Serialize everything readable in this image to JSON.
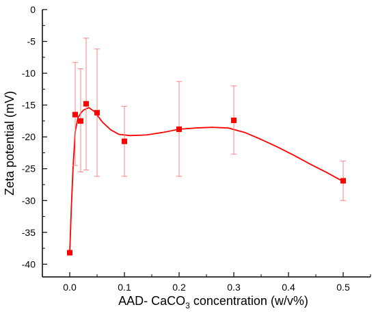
{
  "chart_data": {
    "type": "scatter",
    "xlabel": {
      "main": "AAD- CaCO",
      "sub": "3",
      "rest": " concentration (w/v%)"
    },
    "ylabel": "Zeta potential (mV)",
    "xlim": [
      -0.05,
      0.55
    ],
    "ylim": [
      -42,
      0
    ],
    "xticks": [
      0.0,
      0.1,
      0.2,
      0.3,
      0.4,
      0.5
    ],
    "xtick_labels": [
      "0.0",
      "0.1",
      "0.2",
      "0.3",
      "0.4",
      "0.5"
    ],
    "yticks": [
      0,
      -5,
      -10,
      -15,
      -20,
      -25,
      -30,
      -35,
      -40
    ],
    "ytick_labels": [
      "0",
      "-5",
      "-10",
      "-15",
      "-20",
      "-25",
      "-30",
      "-35",
      "-40"
    ],
    "grid": false,
    "colors": {
      "series": "#ff0000",
      "errorbar": "#ff8080",
      "axis": "#000000"
    },
    "series": [
      {
        "x": [
          0.0,
          0.01,
          0.02,
          0.03,
          0.05,
          0.1,
          0.2,
          0.3,
          0.5
        ],
        "y": [
          -38.2,
          -16.5,
          -17.5,
          -14.8,
          -16.2,
          -20.7,
          -18.8,
          -17.4,
          -26.9
        ],
        "yerr_low": [
          null,
          -24.5,
          -25.5,
          -25.2,
          -26.2,
          -26.2,
          -26.2,
          -22.7,
          -30.0
        ],
        "yerr_high": [
          null,
          -8.3,
          -9.3,
          -4.5,
          -6.2,
          -15.2,
          -11.3,
          -12.0,
          -23.8
        ]
      }
    ],
    "fit_curve": {
      "x": [
        0.0,
        0.003,
        0.006,
        0.01,
        0.015,
        0.02,
        0.025,
        0.03,
        0.035,
        0.045,
        0.06,
        0.075,
        0.09,
        0.11,
        0.14,
        0.17,
        0.2,
        0.23,
        0.26,
        0.29,
        0.32,
        0.35,
        0.38,
        0.41,
        0.44,
        0.47,
        0.5
      ],
      "y": [
        -38.2,
        -31.0,
        -25.0,
        -19.2,
        -17.0,
        -16.3,
        -15.8,
        -15.6,
        -15.4,
        -16.0,
        -17.7,
        -18.9,
        -19.6,
        -19.8,
        -19.7,
        -19.3,
        -18.8,
        -18.6,
        -18.5,
        -18.6,
        -19.3,
        -20.4,
        -21.6,
        -22.9,
        -24.3,
        -25.6,
        -27.0
      ]
    }
  }
}
